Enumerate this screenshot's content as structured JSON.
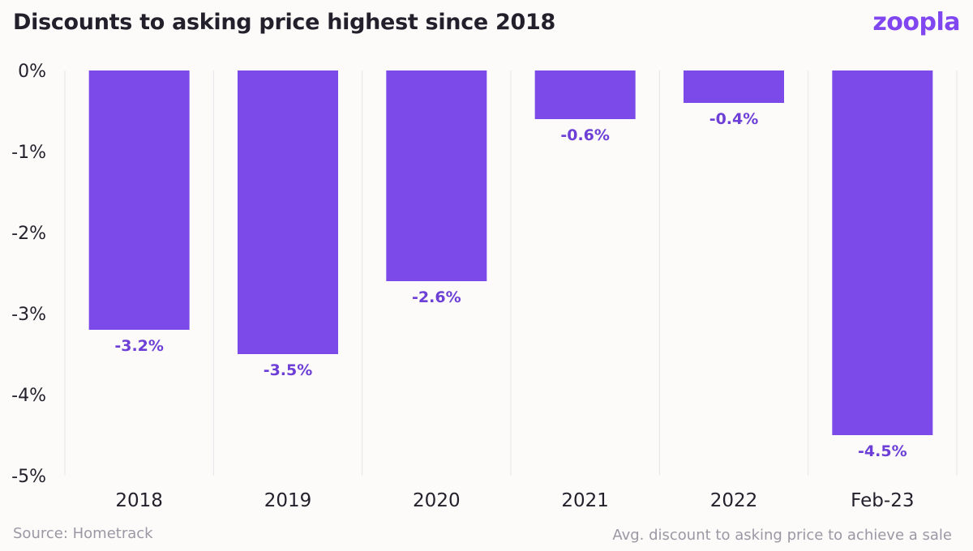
{
  "header": {
    "title": "Discounts to asking price highest since 2018",
    "logo_text": "zoopla"
  },
  "footer": {
    "source": "Source: Hometrack",
    "note": "Avg. discount to asking price to achieve a sale"
  },
  "colors": {
    "bar": "#7b4ae9",
    "label": "#6d3fd6",
    "grid": "#e6e4e8"
  },
  "chart_data": {
    "type": "bar",
    "title": "Discounts to asking price highest since 2018",
    "xlabel": "",
    "ylabel": "",
    "categories": [
      "2018",
      "2019",
      "2020",
      "2021",
      "2022",
      "Feb-23"
    ],
    "values": [
      -3.2,
      -3.5,
      -2.6,
      -0.6,
      -0.4,
      -4.5
    ],
    "data_labels": [
      "-3.2%",
      "-3.5%",
      "-2.6%",
      "-0.6%",
      "-0.4%",
      "-4.5%"
    ],
    "yticks": [
      0,
      -1,
      -2,
      -3,
      -4,
      -5
    ],
    "ytick_labels": [
      "0%",
      "-1%",
      "-2%",
      "-3%",
      "-4%",
      "-5%"
    ],
    "ylim": [
      -5,
      0
    ],
    "grid": "vertical separators",
    "legend": "none"
  }
}
